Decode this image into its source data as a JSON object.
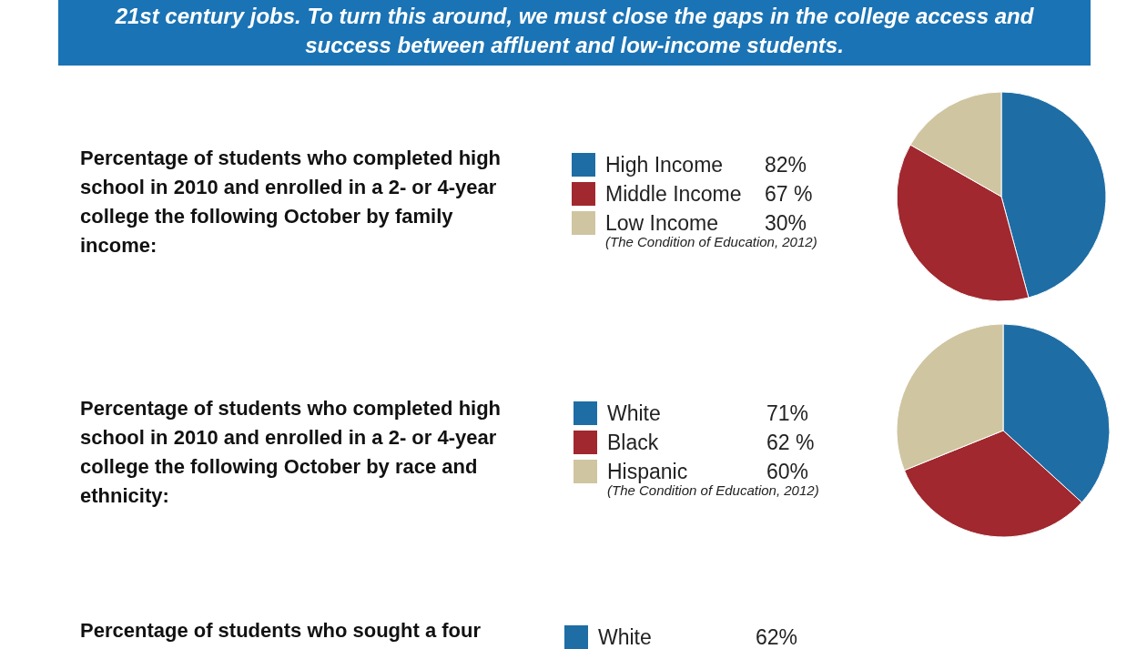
{
  "chart_data": [
    {
      "type": "pie",
      "title": "Percentage of students who completed high school in 2010 and enrolled in a 2- or 4-year college the following October by family income:",
      "categories": [
        "High Income",
        "Middle Income",
        "Low Income"
      ],
      "values": [
        82,
        67,
        30
      ],
      "value_labels": [
        "82%",
        "67 %",
        "30%"
      ],
      "colors": [
        "#1f6da5",
        "#a0282e",
        "#cfc5a1"
      ],
      "legend": "left",
      "annotations": [
        "21st century jobs. To turn this around, we must close the gaps in the college access and success between affluent and low-income students.",
        "(The Condition of Education, 2012)"
      ]
    },
    {
      "type": "pie",
      "title": "Percentage of students who completed high school in 2010 and enrolled in a 2- or 4-year college the following October by race and ethnicity:",
      "categories": [
        "White",
        "Black",
        "Hispanic"
      ],
      "values": [
        71,
        62,
        60
      ],
      "value_labels": [
        "71%",
        "62 %",
        "60%"
      ],
      "colors": [
        "#1f6da5",
        "#a0282e",
        "#cfc5a1"
      ],
      "legend": "left",
      "annotations": [
        "(The Condition of Education, 2012)"
      ]
    },
    {
      "type": "other",
      "title": "Percentage of students who sought a four",
      "annotations": [
        "White",
        "62%"
      ]
    }
  ]
}
